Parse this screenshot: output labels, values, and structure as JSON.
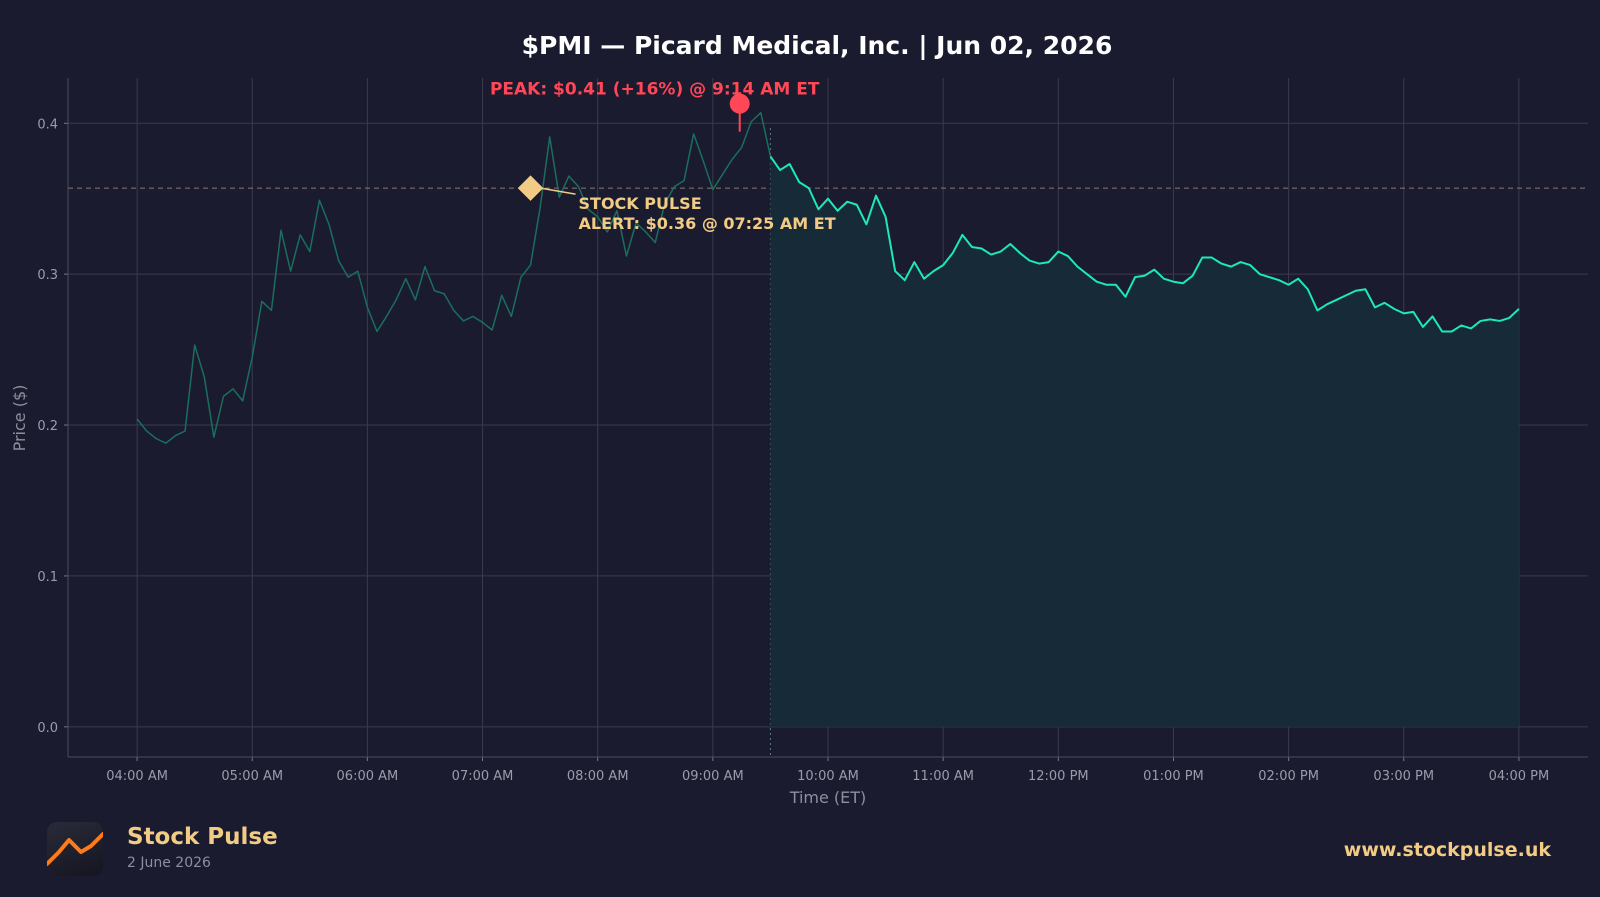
{
  "chart_data": {
    "type": "line",
    "title": "$PMI — Picard Medical, Inc.  |  Jun 02, 2026",
    "xlabel": "Time (ET)",
    "ylabel": "Price ($)",
    "ylim": [
      -0.02,
      0.43
    ],
    "yticks": [
      "0.0",
      "0.1",
      "0.2",
      "0.3",
      "0.4"
    ],
    "xlim_minutes": [
      -36,
      756
    ],
    "xticks": [
      "04:00 AM",
      "05:00 AM",
      "06:00 AM",
      "07:00 AM",
      "08:00 AM",
      "09:00 AM",
      "10:00 AM",
      "11:00 AM",
      "12:00 PM",
      "01:00 PM",
      "02:00 PM",
      "03:00 PM",
      "04:00 PM"
    ],
    "grid": true,
    "market_open": "09:30 AM",
    "reference_price": 0.357,
    "series": [
      {
        "time_minutes_after_4am": [
          0,
          5,
          10,
          15,
          20,
          25,
          30,
          35,
          40,
          45,
          50,
          55,
          60,
          65,
          70,
          75,
          80,
          85,
          90,
          95,
          100,
          105,
          110,
          115,
          120,
          125,
          130,
          135,
          140,
          145,
          150,
          155,
          160,
          165,
          170,
          175,
          180,
          185,
          190,
          195,
          200,
          205,
          210,
          215,
          220,
          225,
          230,
          235,
          240,
          245,
          250,
          255,
          260,
          265,
          270,
          275,
          280,
          285,
          290,
          295,
          300,
          305,
          310,
          315,
          320,
          325,
          330,
          335,
          340,
          345,
          350,
          355,
          360,
          365,
          370,
          375,
          380,
          385,
          390,
          395,
          400,
          405,
          410,
          415,
          420,
          425,
          430,
          435,
          440,
          445,
          450,
          455,
          460,
          465,
          470,
          475,
          480,
          485,
          490,
          495,
          500,
          505,
          510,
          515,
          520,
          525,
          530,
          535,
          540,
          545,
          550,
          555,
          560,
          565,
          570,
          575,
          580,
          585,
          590,
          595,
          600,
          605,
          610,
          615,
          620,
          625,
          630,
          635,
          640,
          645,
          650,
          655,
          660,
          665,
          670,
          675,
          680,
          685,
          690,
          695,
          700,
          705,
          710,
          715,
          720
        ],
        "price": [
          0.204,
          0.196,
          0.191,
          0.188,
          0.193,
          0.196,
          0.253,
          0.232,
          0.192,
          0.219,
          0.224,
          0.216,
          0.245,
          0.282,
          0.276,
          0.329,
          0.302,
          0.326,
          0.315,
          0.349,
          0.333,
          0.309,
          0.298,
          0.302,
          0.278,
          0.262,
          0.272,
          0.283,
          0.297,
          0.283,
          0.305,
          0.289,
          0.287,
          0.276,
          0.269,
          0.272,
          0.268,
          0.263,
          0.286,
          0.272,
          0.298,
          0.306,
          0.344,
          0.391,
          0.351,
          0.365,
          0.358,
          0.343,
          0.338,
          0.328,
          0.342,
          0.312,
          0.334,
          0.328,
          0.321,
          0.347,
          0.358,
          0.362,
          0.393,
          0.375,
          0.356,
          0.366,
          0.376,
          0.384,
          0.401,
          0.407,
          0.378,
          0.369,
          0.373,
          0.361,
          0.357,
          0.343,
          0.35,
          0.342,
          0.348,
          0.346,
          0.333,
          0.352,
          0.338,
          0.302,
          0.296,
          0.308,
          0.297,
          0.302,
          0.306,
          0.314,
          0.326,
          0.318,
          0.317,
          0.313,
          0.315,
          0.32,
          0.314,
          0.309,
          0.307,
          0.308,
          0.315,
          0.312,
          0.305,
          0.3,
          0.295,
          0.293,
          0.293,
          0.285,
          0.298,
          0.299,
          0.303,
          0.297,
          0.295,
          0.294,
          0.299,
          0.311,
          0.311,
          0.307,
          0.305,
          0.308,
          0.306,
          0.3,
          0.298,
          0.296,
          0.293,
          0.297,
          0.29,
          0.276,
          0.28,
          0.283,
          0.286,
          0.289,
          0.29,
          0.278,
          0.281,
          0.277,
          0.274,
          0.275,
          0.265,
          0.272,
          0.262,
          0.262,
          0.266,
          0.264,
          0.269,
          0.27,
          0.269,
          0.271,
          0.277
        ]
      }
    ],
    "annotations": {
      "peak": {
        "text": "PEAK: $0.41 (+16%) @ 9:14 AM ET",
        "price": 0.413,
        "time_minutes_after_4am": 314
      },
      "alert": {
        "line1": "STOCK PULSE",
        "line2": "ALERT: $0.36 @ 07:25 AM ET",
        "price": 0.357,
        "time_minutes_after_4am": 205
      }
    },
    "colors": {
      "background": "#1a1b2e",
      "line_regular": "#1de9b6",
      "line_premarket": "#1a6e5e",
      "fill": "#172a38",
      "peak": "#ff4757",
      "alert": "#f2cc85",
      "grid": "#3a3c4e",
      "reference_line": "#8c7a6a"
    }
  },
  "footer": {
    "brand": "Stock Pulse",
    "date": "2 June 2026",
    "url": "www.stockpulse.uk",
    "logo_icon": "rising-line-chart-icon"
  }
}
